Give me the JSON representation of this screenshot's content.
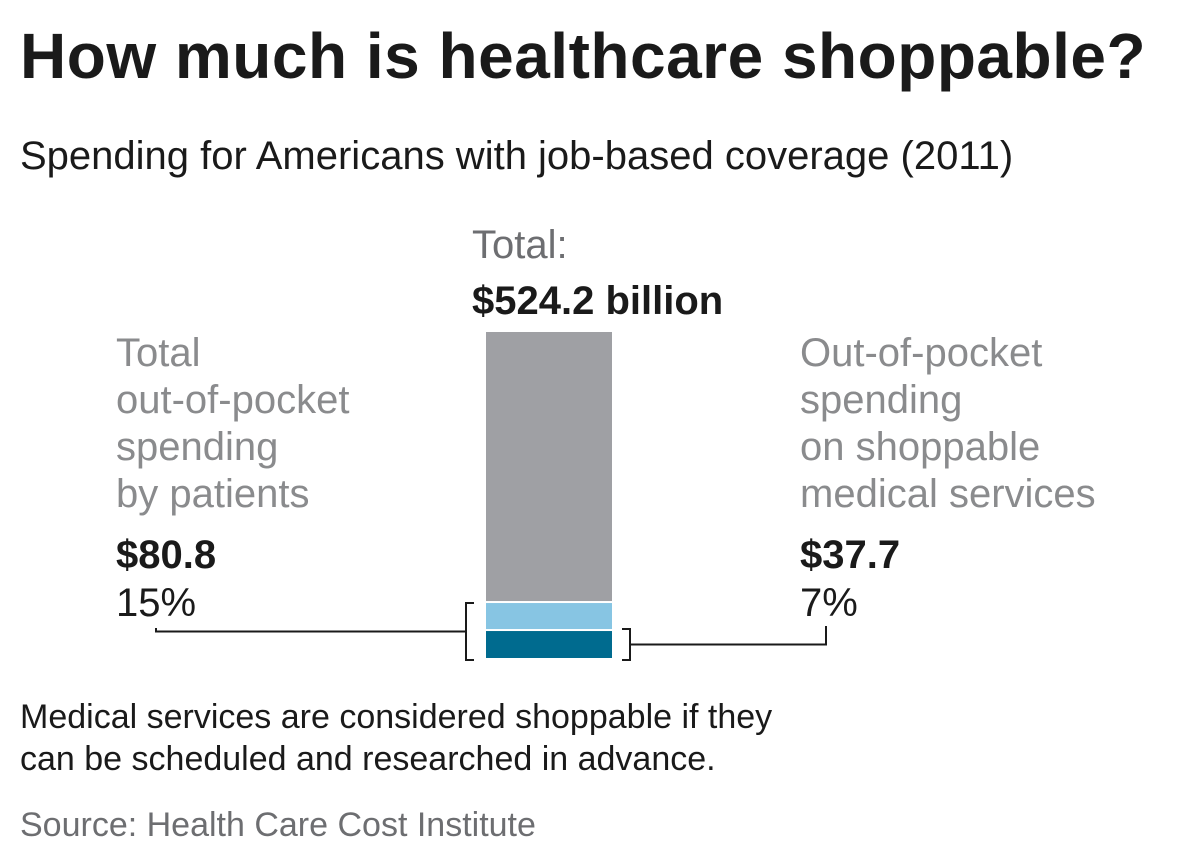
{
  "chart_data": {
    "type": "bar",
    "title": "How much is healthcare shoppable?",
    "subtitle": "Spending for Americans with job-based coverage (2011)",
    "total_label": "Total:",
    "total_value_label": "$524.2 billion",
    "total": 524.2,
    "segments": [
      {
        "name": "Total out-of-pocket spending by patients",
        "value": 80.8,
        "value_label": "$80.8",
        "percent_label": "15%",
        "label_lines": [
          "Total",
          "out-of-pocket",
          "spending",
          "by patients"
        ]
      },
      {
        "name": "Out-of-pocket spending on shoppable medical services",
        "value": 37.7,
        "value_label": "$37.7",
        "percent_label": "7%",
        "label_lines": [
          "Out-of-pocket",
          "spending",
          "on shoppable",
          "medical services"
        ]
      }
    ],
    "colors": {
      "total": "#9fa0a4",
      "out_of_pocket": "#87c5e3",
      "shoppable": "#006b8f",
      "line": "#1a1a1a"
    },
    "note": "Medical services are considered shoppable if they\ncan be scheduled and researched in advance.",
    "source": "Source: Health Care Cost Institute"
  }
}
